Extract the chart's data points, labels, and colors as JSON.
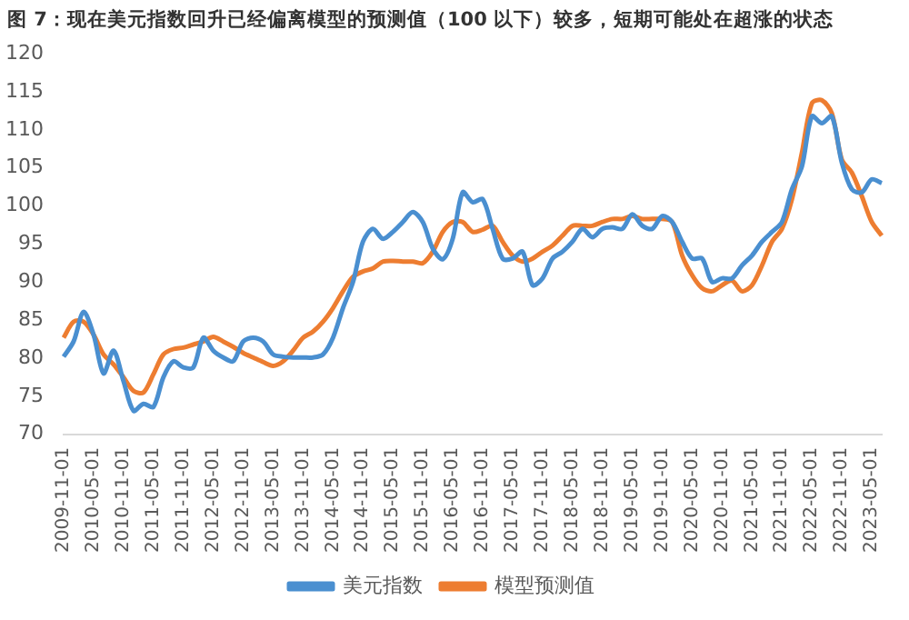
{
  "chart_data": {
    "type": "line",
    "title": "图 7：现在美元指数回升已经偏离模型的预测值（100 以下）较多，短期可能处在超涨的状态",
    "categories": [
      "2009-11-01",
      null,
      null,
      "2010-05-01",
      null,
      null,
      "2010-11-01",
      null,
      null,
      "2011-05-01",
      null,
      null,
      "2011-11-01",
      null,
      null,
      "2012-05-01",
      null,
      null,
      "2012-11-01",
      null,
      null,
      "2013-05-01",
      null,
      null,
      "2013-11-01",
      null,
      null,
      "2014-05-01",
      null,
      null,
      "2014-11-01",
      null,
      null,
      "2015-05-01",
      null,
      null,
      "2015-11-01",
      null,
      null,
      "2016-05-01",
      null,
      null,
      "2016-11-01",
      null,
      null,
      "2017-05-01",
      null,
      null,
      "2017-11-01",
      null,
      null,
      "2018-05-01",
      null,
      null,
      "2018-11-01",
      null,
      null,
      "2019-05-01",
      null,
      null,
      "2019-11-01",
      null,
      null,
      "2020-05-01",
      null,
      null,
      "2020-11-01",
      null,
      null,
      "2021-05-01",
      null,
      null,
      "2021-11-01",
      null,
      null,
      "2022-05-01",
      null,
      null,
      "2022-11-01",
      null,
      null,
      "2023-05-01",
      null
    ],
    "series": [
      {
        "name": "美元指数",
        "color": "#4a8fd0",
        "values": [
          80.2,
          82.2,
          86.1,
          83.1,
          78,
          81,
          77,
          73.1,
          74,
          73.6,
          77.5,
          79.6,
          78.8,
          78.8,
          82.7,
          81,
          80.1,
          79.6,
          82.2,
          82.7,
          82.2,
          80.5,
          80.2,
          80.1,
          80.1,
          80.1,
          80.5,
          82.7,
          86.6,
          90,
          95.3,
          97,
          95.7,
          96.6,
          97.9,
          99.2,
          97.9,
          94.4,
          93,
          95.7,
          101.8,
          100.5,
          100.9,
          97,
          93.1,
          93.1,
          94,
          89.6,
          90.5,
          93.1,
          94,
          95.3,
          97,
          95.9,
          97,
          97.2,
          97,
          98.9,
          97.4,
          97,
          98.7,
          97.9,
          95.3,
          93.1,
          93.1,
          90,
          90.5,
          90.5,
          92.2,
          93.5,
          95.3,
          96.6,
          97.9,
          102.2,
          105.2,
          111.8,
          110.9,
          111.8,
          105.7,
          102.2,
          101.8,
          103.5,
          103
        ]
      },
      {
        "name": "模型预测值",
        "color": "#ed7d31",
        "values": [
          82.7,
          84.8,
          84.8,
          83.1,
          80.5,
          79.2,
          77.5,
          75.7,
          75.5,
          77.9,
          80.5,
          81.2,
          81.4,
          81.8,
          82.2,
          82.8,
          82.2,
          81.5,
          80.7,
          80.1,
          79.5,
          79,
          79.6,
          81,
          82.7,
          83.5,
          84.8,
          86.6,
          88.8,
          90.7,
          91.4,
          91.8,
          92.7,
          92.8,
          92.7,
          92.7,
          92.5,
          94,
          96.6,
          97.9,
          97.9,
          96.6,
          96.9,
          97.4,
          95.3,
          93.5,
          92.7,
          93.1,
          94,
          94.8,
          96.1,
          97.4,
          97.4,
          97.4,
          97.9,
          98.3,
          98.3,
          98.7,
          98.3,
          98.3,
          98.3,
          97.9,
          93.5,
          90.9,
          89.2,
          88.8,
          89.6,
          90.2,
          88.8,
          89.6,
          92.2,
          95.3,
          97,
          100.9,
          107,
          113.5,
          113.9,
          112.2,
          106.1,
          104.4,
          101.3,
          97.9,
          96.1
        ]
      }
    ],
    "ylim": [
      70,
      120
    ],
    "yticks": [
      70,
      75,
      80,
      85,
      90,
      95,
      100,
      105,
      110,
      115,
      120
    ],
    "grid": false,
    "legend": "bottom"
  }
}
